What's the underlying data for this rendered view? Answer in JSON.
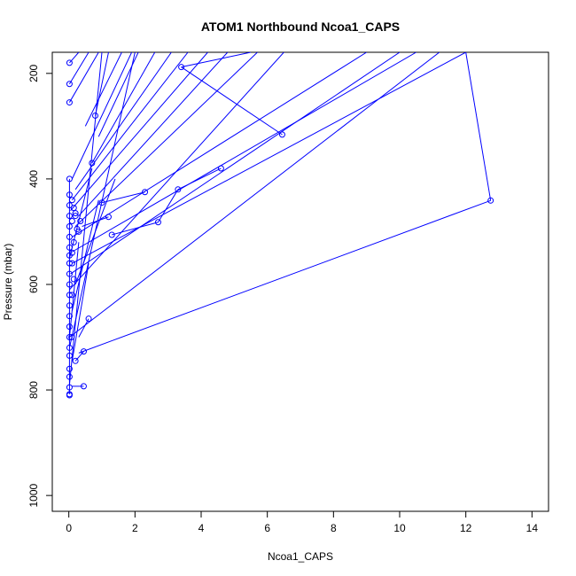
{
  "chart_data": {
    "type": "line",
    "title": "ATOM1 Northbound Ncoa1_CAPS",
    "xlabel": "Ncoa1_CAPS",
    "ylabel": "Pressure (mbar)",
    "xlim": [
      -0.5,
      14.5
    ],
    "ylim": [
      1030,
      160
    ],
    "y_reversed": true,
    "grid": false,
    "x_ticks": [
      0,
      2,
      4,
      6,
      8,
      10,
      12,
      14
    ],
    "y_ticks": [
      200,
      400,
      600,
      800,
      1000
    ],
    "series_color": "#0000ff",
    "point_style": "open-circle",
    "segments": [
      [
        [
          0.02,
          180
        ],
        [
          0.3,
          160
        ]
      ],
      [
        [
          0.02,
          220
        ],
        [
          0.6,
          160
        ]
      ],
      [
        [
          0.02,
          255
        ],
        [
          0.9,
          160
        ]
      ],
      [
        [
          0.8,
          280
        ],
        [
          1.2,
          160
        ]
      ],
      [
        [
          0.5,
          300
        ],
        [
          1.6,
          160
        ]
      ],
      [
        [
          0.9,
          320
        ],
        [
          2.1,
          160
        ]
      ],
      [
        [
          0.7,
          370
        ],
        [
          2.6,
          160
        ]
      ],
      [
        [
          0.1,
          400
        ],
        [
          1.9,
          160
        ]
      ],
      [
        [
          0.2,
          420
        ],
        [
          3.1,
          160
        ]
      ],
      [
        [
          0.1,
          440
        ],
        [
          3.6,
          160
        ]
      ],
      [
        [
          0.05,
          460
        ],
        [
          4.2,
          160
        ]
      ],
      [
        [
          0.3,
          470
        ],
        [
          4.8,
          160
        ]
      ],
      [
        [
          0.2,
          490
        ],
        [
          5.7,
          160
        ]
      ],
      [
        [
          0.1,
          510
        ],
        [
          9.0,
          160
        ]
      ],
      [
        [
          0.05,
          540
        ],
        [
          10.5,
          160
        ]
      ],
      [
        [
          0.1,
          560
        ],
        [
          12.0,
          160
        ]
      ],
      [
        [
          0.05,
          580
        ],
        [
          10.0,
          160
        ]
      ],
      [
        [
          0.02,
          610
        ],
        [
          6.5,
          160
        ]
      ],
      [
        [
          0.02,
          700
        ],
        [
          11.2,
          160
        ]
      ],
      [
        [
          0.02,
          720
        ],
        [
          2.0,
          160
        ]
      ],
      [
        [
          0.02,
          790
        ],
        [
          1.0,
          160
        ]
      ],
      [
        [
          3.4,
          188
        ],
        [
          6.45,
          316
        ]
      ],
      [
        [
          3.4,
          188
        ],
        [
          5.5,
          160
        ]
      ],
      [
        [
          12.0,
          160
        ],
        [
          12.75,
          441
        ]
      ],
      [
        [
          12.75,
          441
        ],
        [
          0.3,
          730
        ]
      ],
      [
        [
          4.6,
          380
        ],
        [
          3.3,
          420
        ]
      ],
      [
        [
          3.3,
          420
        ],
        [
          2.7,
          482
        ]
      ],
      [
        [
          2.7,
          482
        ],
        [
          1.3,
          506
        ]
      ],
      [
        [
          2.3,
          425
        ],
        [
          1.0,
          445
        ]
      ],
      [
        [
          1.2,
          472
        ],
        [
          0.4,
          490
        ]
      ],
      [
        [
          0.6,
          665
        ],
        [
          0.3,
          700
        ]
      ],
      [
        [
          0.45,
          727
        ],
        [
          0.2,
          745
        ]
      ],
      [
        [
          0.45,
          793
        ],
        [
          0.1,
          793
        ]
      ],
      [
        [
          0.02,
          808
        ],
        [
          0.02,
          400
        ]
      ],
      [
        [
          0.02,
          700
        ],
        [
          0.3,
          520
        ]
      ],
      [
        [
          0.1,
          650
        ],
        [
          0.9,
          440
        ]
      ],
      [
        [
          0.2,
          600
        ],
        [
          1.4,
          400
        ]
      ],
      [
        [
          0.1,
          745
        ],
        [
          0.6,
          560
        ]
      ],
      [
        [
          0.02,
          550
        ],
        [
          0.7,
          380
        ]
      ]
    ],
    "points": [
      [
        0.02,
        180
      ],
      [
        0.02,
        220
      ],
      [
        0.02,
        255
      ],
      [
        3.4,
        188
      ],
      [
        6.45,
        316
      ],
      [
        4.6,
        380
      ],
      [
        3.3,
        420
      ],
      [
        2.3,
        425
      ],
      [
        12.75,
        441
      ],
      [
        1.0,
        445
      ],
      [
        1.2,
        472
      ],
      [
        2.7,
        482
      ],
      [
        1.3,
        506
      ],
      [
        0.6,
        665
      ],
      [
        0.45,
        727
      ],
      [
        0.2,
        745
      ],
      [
        0.45,
        793
      ],
      [
        0.8,
        280
      ],
      [
        0.7,
        370
      ],
      [
        0.02,
        400
      ],
      [
        0.02,
        430
      ],
      [
        0.02,
        450
      ],
      [
        0.02,
        470
      ],
      [
        0.02,
        490
      ],
      [
        0.02,
        510
      ],
      [
        0.02,
        530
      ],
      [
        0.02,
        545
      ],
      [
        0.02,
        560
      ],
      [
        0.02,
        580
      ],
      [
        0.02,
        600
      ],
      [
        0.02,
        620
      ],
      [
        0.02,
        640
      ],
      [
        0.02,
        660
      ],
      [
        0.02,
        680
      ],
      [
        0.02,
        700
      ],
      [
        0.02,
        720
      ],
      [
        0.02,
        735
      ],
      [
        0.02,
        760
      ],
      [
        0.02,
        775
      ],
      [
        0.02,
        795
      ],
      [
        0.02,
        808
      ],
      [
        0.02,
        810
      ],
      [
        0.1,
        440
      ],
      [
        0.15,
        455
      ],
      [
        0.2,
        465
      ],
      [
        0.1,
        480
      ],
      [
        0.25,
        495
      ],
      [
        0.3,
        500
      ],
      [
        0.15,
        520
      ],
      [
        0.1,
        540
      ],
      [
        0.2,
        470
      ],
      [
        0.35,
        480
      ],
      [
        0.1,
        620
      ],
      [
        0.08,
        700
      ],
      [
        0.1,
        560
      ],
      [
        0.15,
        590
      ]
    ]
  }
}
